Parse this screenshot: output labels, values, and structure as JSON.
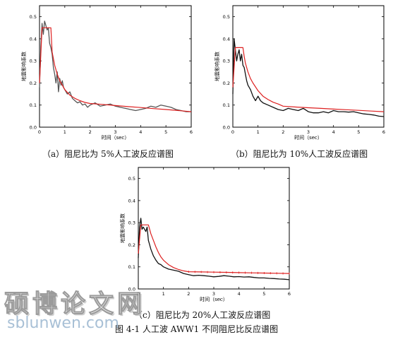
{
  "chart_data": [
    {
      "type": "line",
      "caption": "（a）阻尼比为 5%人工波反应谱图",
      "xlabel": "时间（sec）",
      "ylabel": "地震影响系数",
      "xlim": [
        0,
        6
      ],
      "ylim": [
        0,
        0.55
      ],
      "xticks": [
        0,
        1,
        2,
        3,
        4,
        5,
        6
      ],
      "yticks": [
        0.0,
        0.1,
        0.2,
        0.3,
        0.4,
        0.5
      ],
      "grid": false,
      "series": [
        {
          "color": "#555555",
          "x": [
            0,
            0.05,
            0.1,
            0.15,
            0.2,
            0.25,
            0.3,
            0.35,
            0.4,
            0.45,
            0.5,
            0.55,
            0.6,
            0.65,
            0.7,
            0.75,
            0.8,
            0.85,
            0.9,
            0.95,
            1.0,
            1.1,
            1.2,
            1.3,
            1.4,
            1.5,
            1.6,
            1.7,
            1.8,
            1.9,
            2.0,
            2.2,
            2.4,
            2.6,
            2.8,
            3.0,
            3.2,
            3.4,
            3.6,
            3.8,
            4.0,
            4.2,
            4.4,
            4.6,
            4.8,
            5.0,
            5.2,
            5.4,
            5.6,
            5.8,
            6.0
          ],
          "y": [
            0.18,
            0.36,
            0.47,
            0.42,
            0.48,
            0.46,
            0.44,
            0.45,
            0.38,
            0.36,
            0.33,
            0.27,
            0.24,
            0.2,
            0.25,
            0.16,
            0.22,
            0.19,
            0.21,
            0.18,
            0.17,
            0.15,
            0.16,
            0.13,
            0.12,
            0.11,
            0.115,
            0.1,
            0.105,
            0.09,
            0.1,
            0.11,
            0.095,
            0.1,
            0.105,
            0.095,
            0.09,
            0.085,
            0.08,
            0.075,
            0.08,
            0.085,
            0.095,
            0.09,
            0.1,
            0.095,
            0.09,
            0.08,
            0.075,
            0.07,
            0.07
          ]
        },
        {
          "color": "#dd2020",
          "x": [
            0,
            0.1,
            0.35,
            0.45,
            0.5,
            0.6,
            0.7,
            0.8,
            0.9,
            1.0,
            1.2,
            1.4,
            1.6,
            1.8,
            2.0,
            2.5,
            3.0,
            3.5,
            4.0,
            4.5,
            5.0,
            5.5,
            6.0
          ],
          "y": [
            0.2,
            0.45,
            0.45,
            0.45,
            0.34,
            0.28,
            0.24,
            0.21,
            0.19,
            0.17,
            0.145,
            0.13,
            0.12,
            0.112,
            0.107,
            0.103,
            0.098,
            0.093,
            0.089,
            0.084,
            0.08,
            0.075,
            0.07
          ]
        }
      ]
    },
    {
      "type": "line",
      "caption": "（b）阻尼比为 10%人工波反应谱图",
      "xlabel": "时间（sec）",
      "ylabel": "地震影响系数",
      "xlim": [
        0,
        6
      ],
      "ylim": [
        0,
        0.55
      ],
      "xticks": [
        0,
        1,
        2,
        3,
        4,
        5,
        6
      ],
      "yticks": [
        0.0,
        0.1,
        0.2,
        0.3,
        0.4,
        0.5
      ],
      "grid": false,
      "series": [
        {
          "color": "#111111",
          "x": [
            0,
            0.05,
            0.1,
            0.15,
            0.2,
            0.25,
            0.3,
            0.35,
            0.4,
            0.45,
            0.5,
            0.55,
            0.6,
            0.7,
            0.8,
            0.9,
            1.0,
            1.1,
            1.2,
            1.4,
            1.6,
            1.8,
            2.0,
            2.2,
            2.4,
            2.6,
            2.8,
            3.0,
            3.2,
            3.4,
            3.6,
            3.8,
            4.0,
            4.2,
            4.4,
            4.6,
            4.8,
            5.0,
            5.2,
            5.4,
            5.6,
            5.8,
            6.0
          ],
          "y": [
            0.15,
            0.4,
            0.35,
            0.3,
            0.33,
            0.35,
            0.3,
            0.33,
            0.28,
            0.27,
            0.24,
            0.21,
            0.19,
            0.17,
            0.14,
            0.12,
            0.14,
            0.12,
            0.11,
            0.1,
            0.09,
            0.08,
            0.075,
            0.085,
            0.08,
            0.075,
            0.085,
            0.07,
            0.065,
            0.065,
            0.07,
            0.065,
            0.075,
            0.07,
            0.07,
            0.068,
            0.07,
            0.065,
            0.06,
            0.058,
            0.055,
            0.05,
            0.048
          ]
        },
        {
          "color": "#dd2020",
          "x": [
            0,
            0.1,
            0.3,
            0.4,
            0.45,
            0.5,
            0.6,
            0.7,
            0.8,
            1.0,
            1.2,
            1.4,
            1.6,
            1.8,
            2.0,
            2.5,
            3.0,
            3.5,
            4.0,
            4.5,
            5.0,
            5.5,
            6.0
          ],
          "y": [
            0.18,
            0.36,
            0.36,
            0.36,
            0.32,
            0.29,
            0.25,
            0.22,
            0.2,
            0.165,
            0.14,
            0.125,
            0.113,
            0.105,
            0.095,
            0.091,
            0.088,
            0.085,
            0.082,
            0.079,
            0.076,
            0.073,
            0.07
          ]
        }
      ]
    },
    {
      "type": "line",
      "caption": "（c）阻尼比为 20%人工波反应谱图",
      "xlabel": "时间（sec）",
      "ylabel": "地震影响系数",
      "xlim": [
        0,
        6
      ],
      "ylim": [
        0,
        0.55
      ],
      "xticks": [
        0,
        1,
        2,
        3,
        4,
        5,
        6
      ],
      "yticks": [
        0.0,
        0.1,
        0.2,
        0.3,
        0.4,
        0.5
      ],
      "grid": false,
      "series": [
        {
          "color": "#111111",
          "x": [
            0,
            0.05,
            0.1,
            0.15,
            0.2,
            0.25,
            0.3,
            0.35,
            0.4,
            0.45,
            0.5,
            0.6,
            0.7,
            0.8,
            0.9,
            1.0,
            1.2,
            1.4,
            1.6,
            1.8,
            2.0,
            2.2,
            2.4,
            2.6,
            2.8,
            3.0,
            3.2,
            3.4,
            3.6,
            3.8,
            4.0,
            4.2,
            4.4,
            4.6,
            4.8,
            5.0,
            5.2,
            5.4,
            5.6,
            5.8,
            6.0
          ],
          "y": [
            0.14,
            0.28,
            0.32,
            0.27,
            0.28,
            0.27,
            0.26,
            0.28,
            0.22,
            0.2,
            0.18,
            0.15,
            0.13,
            0.115,
            0.11,
            0.1,
            0.09,
            0.085,
            0.08,
            0.07,
            0.065,
            0.06,
            0.062,
            0.06,
            0.058,
            0.055,
            0.057,
            0.06,
            0.058,
            0.055,
            0.056,
            0.054,
            0.055,
            0.052,
            0.05,
            0.05,
            0.048,
            0.047,
            0.045,
            0.044,
            0.042
          ]
        },
        {
          "color": "#dd2020",
          "x": [
            0,
            0.1,
            0.3,
            0.4,
            0.45,
            0.5,
            0.6,
            0.7,
            0.8,
            0.9,
            1.0,
            1.2,
            1.4,
            1.6,
            1.8,
            2.0,
            2.5,
            3.0,
            3.5,
            4.0,
            4.5,
            5.0,
            5.5,
            6.0
          ],
          "y": [
            0.16,
            0.29,
            0.29,
            0.29,
            0.27,
            0.25,
            0.22,
            0.19,
            0.165,
            0.145,
            0.13,
            0.11,
            0.097,
            0.088,
            0.082,
            0.078,
            0.077,
            0.076,
            0.075,
            0.074,
            0.073,
            0.072,
            0.071,
            0.07
          ]
        }
      ]
    }
  ],
  "figure_title": "图 4-1 人工波 AWW1 不同阻尼比反应谱图",
  "watermark": {
    "cn": "硕博论文网",
    "en": "sblunwen.com"
  }
}
